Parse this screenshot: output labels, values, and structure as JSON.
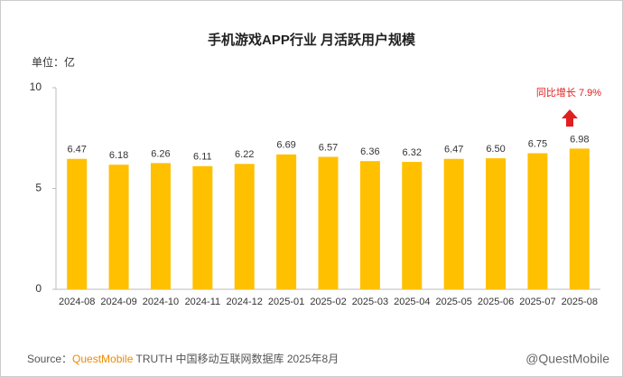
{
  "chart_data": {
    "type": "bar",
    "title": "手机游戏APP行业 月活跃用户规模",
    "unit_label": "单位：亿",
    "categories": [
      "2024-08",
      "2024-09",
      "2024-10",
      "2024-11",
      "2024-12",
      "2025-01",
      "2025-02",
      "2025-03",
      "2025-04",
      "2025-05",
      "2025-06",
      "2025-07",
      "2025-08"
    ],
    "values": [
      6.47,
      6.18,
      6.26,
      6.11,
      6.22,
      6.69,
      6.57,
      6.36,
      6.32,
      6.47,
      6.5,
      6.75,
      6.98
    ],
    "value_labels": [
      "6.47",
      "6.18",
      "6.26",
      "6.11",
      "6.22",
      "6.69",
      "6.57",
      "6.36",
      "6.32",
      "6.47",
      "6.50",
      "6.75",
      "6.98"
    ],
    "color": "#ffc000",
    "ylim": [
      0,
      10
    ],
    "yticks": [
      0,
      5,
      10
    ],
    "annotation": "同比增长 7.9%",
    "source_label": "Source：",
    "source_brand": "QuestMobile",
    "source_text": "TRUTH 中国移动互联网数据库 2025年8月",
    "watermark": "@QuestMobile"
  }
}
